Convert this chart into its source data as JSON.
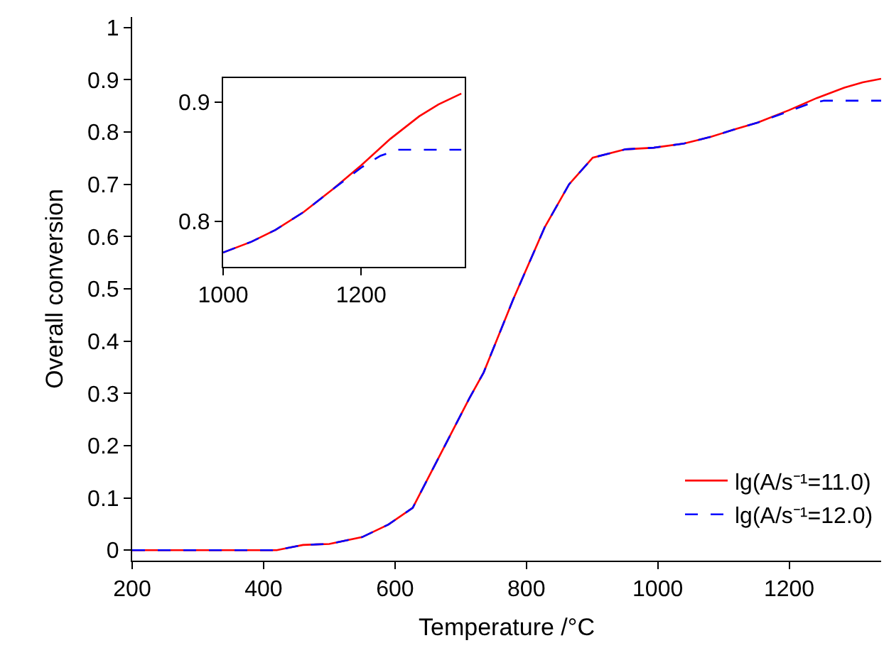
{
  "chart_data": [
    {
      "type": "line",
      "xlabel": "Temperature /°C",
      "ylabel": "Overall conversion",
      "xlim": [
        200,
        1340
      ],
      "ylim": [
        -0.02,
        1.02
      ],
      "xticks": [
        200,
        400,
        600,
        800,
        1000,
        1200
      ],
      "yticks": [
        0,
        {
          "value": 0.1,
          "label": "0.1"
        },
        {
          "value": 0.2,
          "label": "0.2"
        },
        {
          "value": 0.3,
          "label": "0.3"
        },
        {
          "value": 0.4,
          "label": "0.4"
        },
        {
          "value": 0.5,
          "label": "0.5"
        },
        {
          "value": 0.6,
          "label": "0.6"
        },
        {
          "value": 0.7,
          "label": "0.7"
        },
        {
          "value": 0.8,
          "label": "0.8"
        },
        {
          "value": 0.9,
          "label": "0.9"
        },
        1
      ],
      "grid": false,
      "legend": "bottom right",
      "marker": "none",
      "series": [
        {
          "name": "lg(A/s⁻¹=11.0)",
          "color": "#ff0000",
          "line_style": "solid",
          "x": [
            200,
            300,
            400,
            420,
            440,
            460,
            480,
            500,
            550,
            590,
            627,
            676,
            713,
            735,
            780,
            828,
            865,
            901,
            951,
            994,
            1040,
            1081,
            1117,
            1152,
            1200,
            1242,
            1284,
            1312,
            1340
          ],
          "values": [
            0,
            0,
            0,
            0,
            0.005,
            0.01,
            0.011,
            0.012,
            0.025,
            0.049,
            0.081,
            0.2,
            0.29,
            0.34,
            0.48,
            0.618,
            0.7,
            0.751,
            0.767,
            0.77,
            0.778,
            0.791,
            0.805,
            0.818,
            0.842,
            0.865,
            0.885,
            0.895,
            0.902
          ]
        },
        {
          "name": "lg(A/s⁻¹=12.0)",
          "color": "#0000ff",
          "line_style": "dashed",
          "x": [
            200,
            300,
            400,
            420,
            440,
            460,
            480,
            500,
            550,
            590,
            627,
            676,
            713,
            735,
            780,
            828,
            865,
            901,
            951,
            994,
            1040,
            1081,
            1117,
            1152,
            1200,
            1228,
            1253,
            1284,
            1340
          ],
          "values": [
            0,
            0,
            0,
            0,
            0.005,
            0.01,
            0.011,
            0.012,
            0.025,
            0.049,
            0.081,
            0.2,
            0.29,
            0.34,
            0.48,
            0.618,
            0.7,
            0.751,
            0.767,
            0.77,
            0.778,
            0.791,
            0.805,
            0.818,
            0.84,
            0.853,
            0.86,
            0.86,
            0.86
          ]
        }
      ]
    },
    {
      "type": "line",
      "xlim": [
        1000,
        1350
      ],
      "ylim": [
        0.762,
        0.92
      ],
      "xticks": [
        1000,
        1200
      ],
      "yticks": [
        {
          "value": 0.8,
          "label": "0.8"
        },
        {
          "value": 0.9,
          "label": "0.9"
        }
      ],
      "grid": false,
      "legend": false,
      "marker": "none",
      "series": [
        {
          "color": "#ff0000",
          "line_style": "solid",
          "x": [
            1000,
            1041,
            1076,
            1117,
            1159,
            1200,
            1242,
            1284,
            1312,
            1345
          ],
          "values": [
            0.774,
            0.783,
            0.793,
            0.808,
            0.827,
            0.847,
            0.869,
            0.888,
            0.898,
            0.907
          ]
        },
        {
          "color": "#0000ff",
          "line_style": "dashed",
          "x": [
            1000,
            1041,
            1076,
            1117,
            1159,
            1200,
            1228,
            1253,
            1300,
            1345
          ],
          "values": [
            0.774,
            0.783,
            0.793,
            0.808,
            0.827,
            0.845,
            0.855,
            0.86,
            0.86,
            0.86
          ]
        }
      ]
    }
  ]
}
